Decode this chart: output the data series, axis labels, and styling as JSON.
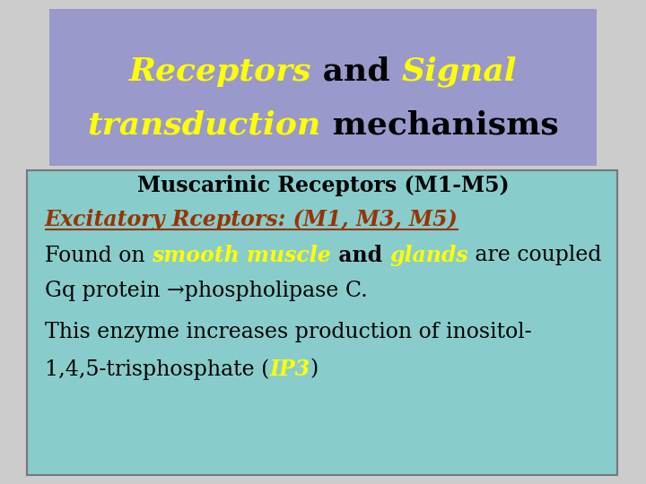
{
  "title_bg_color": "#9999cc",
  "body_bg_color": "#88cccc",
  "slide_bg_color": "#cccccc",
  "title_line1_parts": [
    {
      "text": "Receptors",
      "color": "#ffff00",
      "bold": true,
      "italic": true
    },
    {
      "text": " and ",
      "color": "#000000",
      "bold": true,
      "italic": false
    },
    {
      "text": "Signal",
      "color": "#ffff00",
      "bold": true,
      "italic": true
    }
  ],
  "title_line2_parts": [
    {
      "text": "transduction",
      "color": "#ffff00",
      "bold": true,
      "italic": true
    },
    {
      "text": " mechanisms",
      "color": "#000000",
      "bold": true,
      "italic": false
    }
  ],
  "subtitle": "Muscarinic Receptors (M1-M5)",
  "subtitle_color": "#000000",
  "line2_parts": [
    {
      "text": "Found on ",
      "color": "#000000",
      "bold": false,
      "italic": false
    },
    {
      "text": "smooth muscle",
      "color": "#ffff00",
      "bold": true,
      "italic": true
    },
    {
      "text": " and ",
      "color": "#000000",
      "bold": true,
      "italic": false
    },
    {
      "text": "glands",
      "color": "#ffff00",
      "bold": true,
      "italic": true
    },
    {
      "text": " are coupled",
      "color": "#000000",
      "bold": false,
      "italic": false
    }
  ],
  "line3": "Gq protein →phospholipase C.",
  "line3_color": "#000000",
  "title_fontsize": 26,
  "body_fontsize": 17,
  "subtitle_fontsize": 17,
  "exc_color": "#993300",
  "ip3_color": "#ffff00"
}
